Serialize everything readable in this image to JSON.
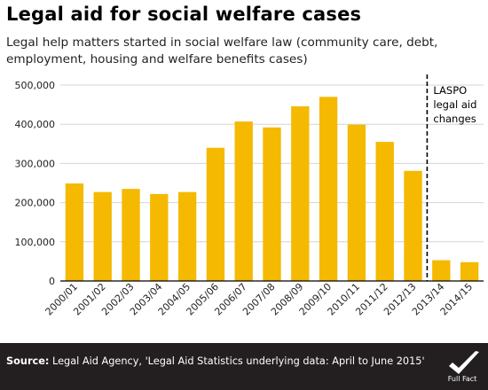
{
  "chart_data": {
    "type": "bar",
    "title": "Legal aid for social welfare cases",
    "subtitle": "Legal help matters started in social welfare law (community care, debt, employment, housing and welfare benefits cases)",
    "categories": [
      "2000/01",
      "2001/02",
      "2002/03",
      "2003/04",
      "2004/05",
      "2005/06",
      "2006/07",
      "2007/08",
      "2008/09",
      "2009/10",
      "2010/11",
      "2011/12",
      "2012/13",
      "2013/14",
      "2014/15"
    ],
    "values": [
      249000,
      227000,
      235000,
      222000,
      227000,
      340000,
      407000,
      392000,
      446000,
      470000,
      399000,
      355000,
      281000,
      53000,
      48000
    ],
    "ylim": [
      0,
      500000
    ],
    "yticks": [
      0,
      100000,
      200000,
      300000,
      400000,
      500000
    ],
    "ytick_labels": [
      "0",
      "100,000",
      "200,000",
      "300,000",
      "400,000",
      "500,000"
    ],
    "grid": true,
    "bar_color": "#f4b900",
    "annotation": {
      "after_category": "2012/13",
      "lines": [
        "LASPO",
        "legal aid",
        "changes"
      ]
    }
  },
  "footer": {
    "source_label": "Source:",
    "source_text": " Legal Aid Agency, 'Legal Aid Statistics underlying data: April to June 2015'",
    "logo_text": "Full Fact"
  }
}
